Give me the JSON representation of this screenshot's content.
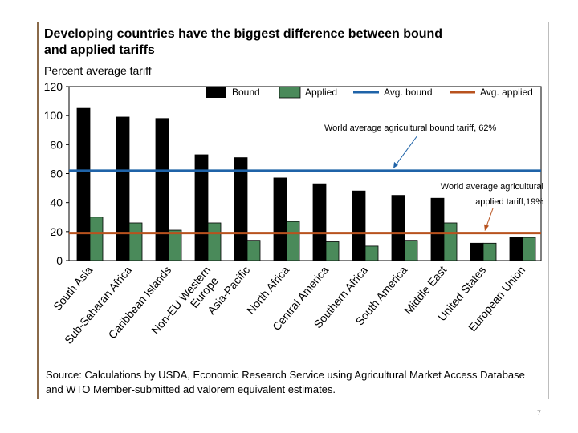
{
  "colors": {
    "bound": "#000000",
    "applied": "#4a8a5a",
    "avg_bound": "#1f63a8",
    "avg_applied": "#b8521e"
  },
  "chart_data": {
    "type": "bar",
    "title": "Developing countries have the biggest difference between bound\nand applied tariffs",
    "ylabel": "Percent average tariff",
    "xlabel": "",
    "ylim": [
      0,
      120
    ],
    "yticks": [
      0,
      20,
      40,
      60,
      80,
      100,
      120
    ],
    "grid": false,
    "legend_position": "top",
    "categories": [
      "South Asia",
      "Sub-Saharan Africa",
      "Caribbean Islands",
      "Non-EU Western Europe",
      "Asia-Pacific",
      "North Africa",
      "Central America",
      "Southern Africa",
      "South America",
      "Middle East",
      "United States",
      "European Union"
    ],
    "series": [
      {
        "name": "Bound",
        "values": [
          105,
          99,
          98,
          73,
          71,
          57,
          53,
          48,
          45,
          43,
          12,
          16
        ]
      },
      {
        "name": "Applied",
        "values": [
          30,
          26,
          21,
          26,
          14,
          27,
          13,
          10,
          14,
          26,
          12,
          16
        ]
      }
    ],
    "reference_lines": [
      {
        "name": "Avg. bound",
        "value": 62,
        "annotation": "World average agricultural bound tariff, 62%"
      },
      {
        "name": "Avg. applied",
        "value": 19,
        "annotation_lines": [
          "World average agricultural",
          "applied tariff,19%"
        ]
      }
    ],
    "category_label_lines": [
      [
        "South Asia"
      ],
      [
        "Sub-Saharan Africa"
      ],
      [
        "Caribbean Islands"
      ],
      [
        "Non-EU Western",
        "Europe"
      ],
      [
        "Asia-Pacific"
      ],
      [
        "North Africa"
      ],
      [
        "Central America"
      ],
      [
        "Southern Africa"
      ],
      [
        "South America"
      ],
      [
        "Middle East"
      ],
      [
        "United States"
      ],
      [
        "European Union"
      ]
    ]
  },
  "source_note": "Source:  Calculations by USDA, Economic Research Service using Agricultural Market Access Database and WTO Member-submitted ad valorem equivalent estimates.",
  "page_number": "7"
}
